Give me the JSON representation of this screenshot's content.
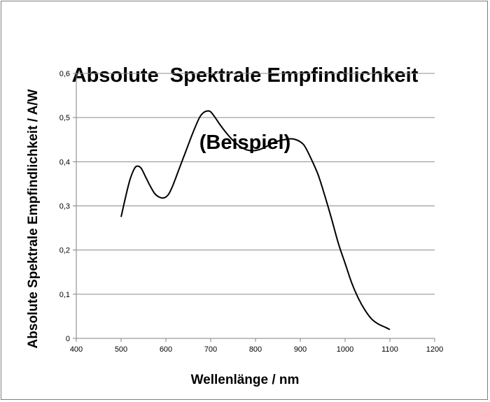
{
  "chart_data": {
    "type": "line",
    "title_line1": "Absolute  Spektrale Empfindlichkeit",
    "title_line2": "(Beispiel)",
    "xlabel": "Wellenlänge / nm",
    "ylabel": "Absolute  Spektrale Empfindlichkeit / A/W",
    "xlim": [
      400,
      1200
    ],
    "ylim": [
      0,
      0.6
    ],
    "x_ticks": [
      400,
      500,
      600,
      700,
      800,
      900,
      1000,
      1100,
      1200
    ],
    "x_tick_labels": [
      "400",
      "500",
      "600",
      "700",
      "800",
      "900",
      "1000",
      "1100",
      "1200"
    ],
    "y_ticks": [
      0,
      0.1,
      0.2,
      0.3,
      0.4,
      0.5,
      0.6
    ],
    "y_tick_labels": [
      "0",
      "0,1",
      "0,2",
      "0,3",
      "0,4",
      "0,5",
      "0,6"
    ],
    "grid": "horizontal",
    "line_color": "#000000",
    "series": [
      {
        "x": [
          500,
          510,
          520,
          530,
          537,
          545,
          555,
          565,
          575,
          585,
          595,
          605,
          615,
          630,
          645,
          660,
          675,
          685,
          693,
          700,
          710,
          720,
          735,
          750,
          765,
          780,
          795,
          810,
          825,
          840,
          855,
          870,
          880,
          890,
          900,
          910,
          925,
          940,
          955,
          970,
          985,
          1000,
          1015,
          1030,
          1045,
          1060,
          1075,
          1090,
          1100
        ],
        "y": [
          0.275,
          0.32,
          0.36,
          0.385,
          0.39,
          0.385,
          0.365,
          0.345,
          0.328,
          0.32,
          0.318,
          0.325,
          0.345,
          0.385,
          0.425,
          0.465,
          0.5,
          0.512,
          0.515,
          0.513,
          0.5,
          0.485,
          0.465,
          0.448,
          0.435,
          0.427,
          0.425,
          0.428,
          0.435,
          0.443,
          0.448,
          0.451,
          0.452,
          0.45,
          0.445,
          0.435,
          0.405,
          0.37,
          0.322,
          0.27,
          0.215,
          0.17,
          0.125,
          0.09,
          0.063,
          0.043,
          0.032,
          0.025,
          0.02
        ]
      }
    ]
  }
}
